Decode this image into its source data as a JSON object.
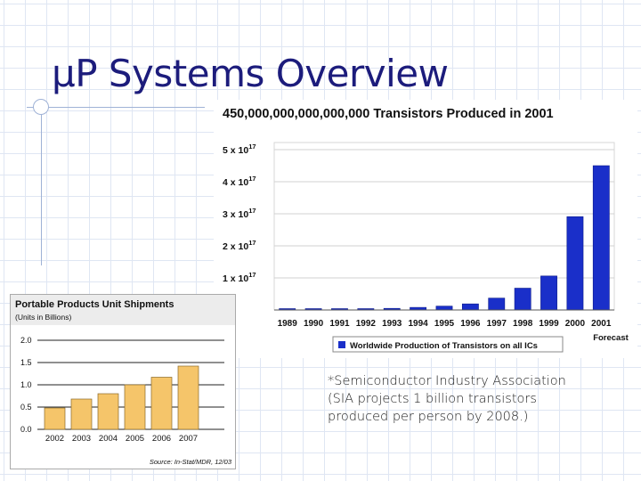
{
  "slide": {
    "title": "μP Systems Overview",
    "note_lines": [
      "*Semiconductor Industry Association",
      "(SIA projects 1 billion transistors",
      "produced per person by 2008.)"
    ]
  },
  "colors": {
    "title": "#1c1c7c",
    "main_bar": "#1a2fc9",
    "small_bar": "#f5c56a",
    "grid_lines": "#dfe6f3"
  },
  "chart_data": [
    {
      "type": "bar",
      "title": "450,000,000,000,000,000 Transistors Produced in 2001",
      "categories": [
        "1989",
        "1990",
        "1991",
        "1992",
        "1993",
        "1994",
        "1995",
        "1996",
        "1997",
        "1998",
        "1999",
        "2000",
        "2001"
      ],
      "values": [
        0.01,
        0.01,
        0.02,
        0.03,
        0.05,
        0.08,
        0.12,
        0.19,
        0.37,
        0.68,
        1.06,
        2.91,
        4.5
      ],
      "value_unit": "x 10^17",
      "ylim": [
        0,
        5
      ],
      "yticks": [
        0,
        1,
        2,
        3,
        4,
        5
      ],
      "ytick_labels": [
        "0",
        "1 x 10",
        "2 x 10",
        "3 x 10",
        "4 x 10",
        "5 x 10"
      ],
      "ytick_exponent": "17",
      "forecast_label": "Forecast",
      "legend": [
        "Worldwide Production of Transistors on all ICs"
      ],
      "legend_position": "bottom-center"
    },
    {
      "type": "bar",
      "title": "Portable Products Unit Shipments",
      "subtitle": "(Units in Billions)",
      "categories": [
        "2002",
        "2003",
        "2004",
        "2005",
        "2006",
        "2007"
      ],
      "values": [
        0.48,
        0.68,
        0.8,
        1.0,
        1.17,
        1.42
      ],
      "ylim": [
        0,
        2.0
      ],
      "yticks": [
        "0.0",
        "0.5",
        "1.0",
        "1.5",
        "2.0"
      ],
      "source": "Source: In-Stat/MDR, 12/03"
    }
  ]
}
